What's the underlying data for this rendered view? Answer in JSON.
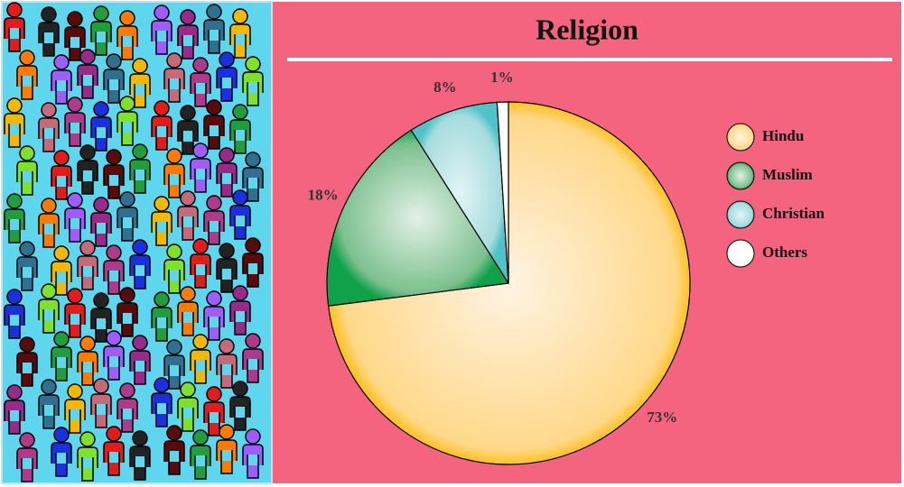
{
  "chart_data": {
    "type": "pie",
    "title": "Religion",
    "categories": [
      "Hindu",
      "Muslim",
      "Christian",
      "Others"
    ],
    "values": [
      73,
      18,
      8,
      1
    ],
    "value_labels": [
      "73%",
      "18%",
      "8%",
      "1%"
    ],
    "colors": [
      "#ffc94a",
      "#1fa651",
      "#5cc7cc",
      "#ffffff"
    ],
    "legend": "right"
  }
}
